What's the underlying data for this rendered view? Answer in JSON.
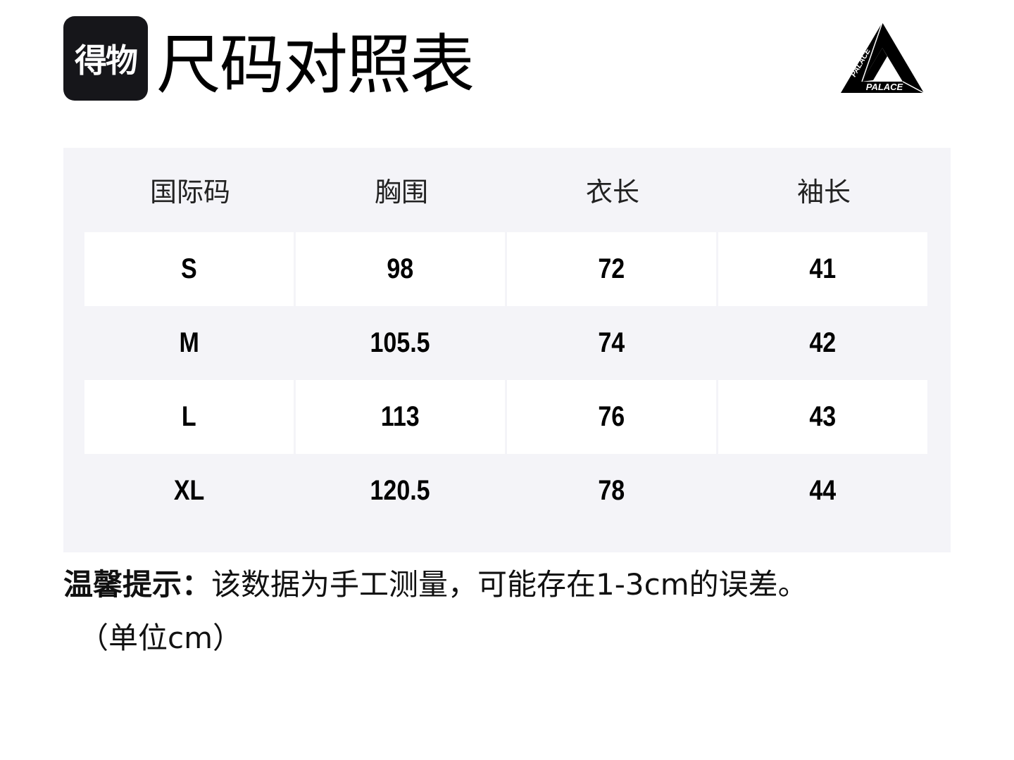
{
  "header": {
    "app_logo_text": "得物",
    "title": "尺码对照表",
    "brand_logo_text": "PALACE"
  },
  "table": {
    "columns": [
      "国际码",
      "胸围",
      "衣长",
      "袖长"
    ],
    "rows": [
      [
        "S",
        "98",
        "72",
        "41"
      ],
      [
        "M",
        "105.5",
        "74",
        "42"
      ],
      [
        "L",
        "113",
        "76",
        "43"
      ],
      [
        "XL",
        "120.5",
        "78",
        "44"
      ]
    ]
  },
  "note": {
    "label": "温馨提示：",
    "text": "该数据为手工测量，可能存在1-3cm的误差。",
    "unit": "（单位cm）"
  },
  "colors": {
    "table_bg": "#f4f4f8",
    "cell_bg": "#ffffff",
    "logo_bg": "#16161a"
  }
}
